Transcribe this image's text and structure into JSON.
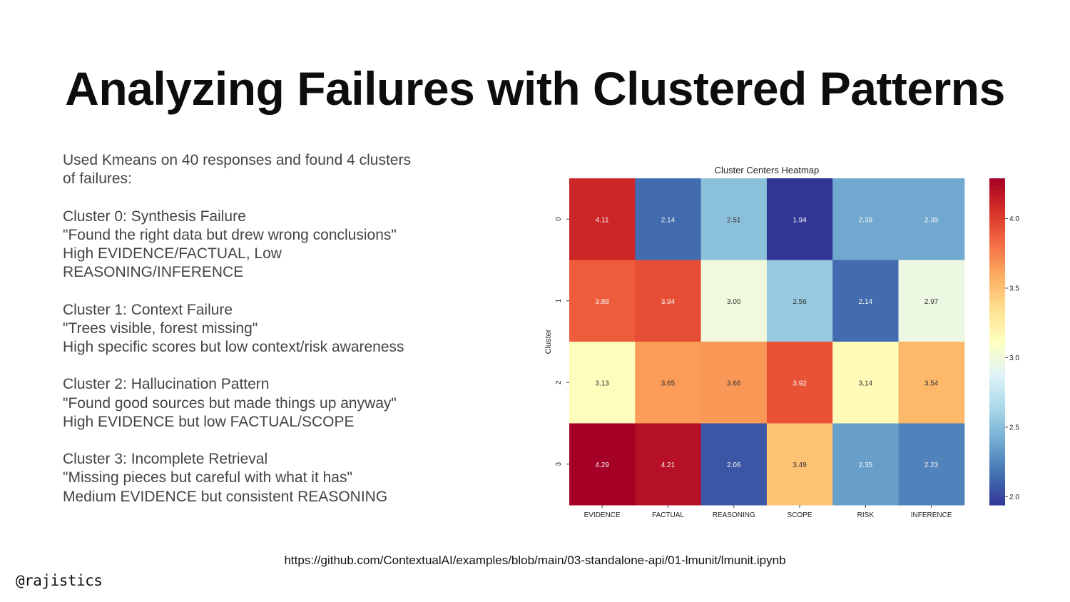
{
  "slide": {
    "title": "Analyzing Failures with Clustered Patterns",
    "paragraphs": [
      [
        "Used Kmeans on 40 responses and found 4 clusters",
        "of failures:"
      ],
      [
        "Cluster 0: Synthesis Failure",
        "\"Found the right data but drew wrong conclusions\"",
        "High EVIDENCE/FACTUAL, Low",
        "REASONING/INFERENCE"
      ],
      [
        "Cluster 1: Context Failure",
        "\"Trees visible, forest missing\"",
        "High specific scores but low context/risk awareness"
      ],
      [
        "Cluster 2: Hallucination Pattern",
        "\"Found good sources but made things up anyway\"",
        "High EVIDENCE but low FACTUAL/SCOPE"
      ],
      [
        "Cluster 3: Incomplete Retrieval",
        "\"Missing pieces but careful with what it has\"",
        "Medium EVIDENCE but consistent REASONING"
      ]
    ],
    "footer_url": "https://github.com/ContextualAI/examples/blob/main/03-standalone-api/01-lmunit/lmunit.ipynb",
    "handle": "@rajistics"
  },
  "chart_data": {
    "type": "heatmap",
    "title": "Cluster Centers Heatmap",
    "ylabel": "Cluster",
    "xlabel": "",
    "x": [
      "EVIDENCE",
      "FACTUAL",
      "REASONING",
      "SCOPE",
      "RISK",
      "INFERENCE"
    ],
    "y": [
      "0",
      "1",
      "2",
      "3"
    ],
    "values": [
      [
        4.11,
        2.14,
        2.51,
        1.94,
        2.39,
        2.39
      ],
      [
        3.88,
        3.94,
        3.0,
        2.56,
        2.14,
        2.97
      ],
      [
        3.13,
        3.65,
        3.66,
        3.92,
        3.14,
        3.54
      ],
      [
        4.29,
        4.21,
        2.06,
        3.49,
        2.35,
        2.23
      ]
    ],
    "colorbar": {
      "colormap": "RdYlBu_r",
      "range": [
        1.94,
        4.29
      ],
      "ticks": [
        2.0,
        2.5,
        3.0,
        3.5,
        4.0
      ]
    }
  }
}
